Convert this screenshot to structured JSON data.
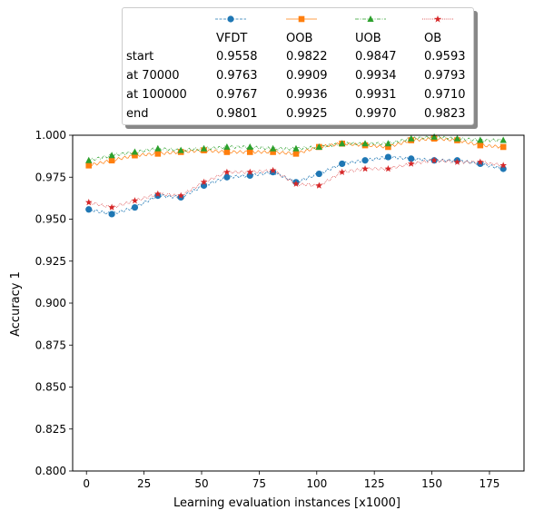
{
  "chart_data": {
    "type": "line",
    "xlabel": "Learning evaluation instances [x1000]",
    "ylabel": "Accuracy 1",
    "xlim": [
      -6,
      190
    ],
    "ylim": [
      0.8,
      1.0
    ],
    "xticks": [
      "0",
      "25",
      "50",
      "75",
      "100",
      "125",
      "150",
      "175"
    ],
    "yticks": [
      "0.800",
      "0.825",
      "0.850",
      "0.875",
      "0.900",
      "0.925",
      "0.950",
      "0.975",
      "1.000"
    ],
    "grid": false,
    "legend_position": "top-center, above plot",
    "x": [
      1,
      11,
      21,
      31,
      41,
      51,
      61,
      71,
      81,
      91,
      101,
      111,
      121,
      131,
      141,
      151,
      161,
      171,
      181
    ],
    "series": [
      {
        "name": "VFDT",
        "color": "#1f77b4",
        "marker": "circle",
        "linestyle": "dashed",
        "values": [
          0.9558,
          0.953,
          0.957,
          0.964,
          0.963,
          0.97,
          0.975,
          0.976,
          0.978,
          0.972,
          0.977,
          0.983,
          0.985,
          0.987,
          0.986,
          0.985,
          0.985,
          0.983,
          0.98
        ]
      },
      {
        "name": "OOB",
        "color": "#ff7f0e",
        "marker": "square",
        "linestyle": "solid",
        "values": [
          0.982,
          0.985,
          0.988,
          0.989,
          0.99,
          0.991,
          0.99,
          0.99,
          0.99,
          0.989,
          0.993,
          0.995,
          0.994,
          0.993,
          0.997,
          0.998,
          0.997,
          0.994,
          0.993
        ]
      },
      {
        "name": "UOB",
        "color": "#2ca02c",
        "marker": "triangle",
        "linestyle": "dashdot",
        "values": [
          0.985,
          0.988,
          0.99,
          0.992,
          0.991,
          0.992,
          0.993,
          0.993,
          0.992,
          0.992,
          0.993,
          0.995,
          0.995,
          0.995,
          0.998,
          0.999,
          0.998,
          0.997,
          0.997
        ]
      },
      {
        "name": "OB",
        "color": "#d62728",
        "marker": "star",
        "linestyle": "dotted",
        "values": [
          0.96,
          0.957,
          0.961,
          0.965,
          0.964,
          0.972,
          0.978,
          0.978,
          0.979,
          0.971,
          0.97,
          0.978,
          0.98,
          0.98,
          0.983,
          0.985,
          0.984,
          0.984,
          0.982
        ]
      }
    ],
    "legend": {
      "columns": [
        "VFDT",
        "OOB",
        "UOB",
        "OB"
      ],
      "rows": [
        {
          "label": "start",
          "values": [
            "0.9558",
            "0.9822",
            "0.9847",
            "0.9593"
          ]
        },
        {
          "label": "at 70000",
          "values": [
            "0.9763",
            "0.9909",
            "0.9934",
            "0.9793"
          ]
        },
        {
          "label": "at 100000",
          "values": [
            "0.9767",
            "0.9936",
            "0.9931",
            "0.9710"
          ]
        },
        {
          "label": "end",
          "values": [
            "0.9801",
            "0.9925",
            "0.9970",
            "0.9823"
          ]
        }
      ]
    }
  }
}
